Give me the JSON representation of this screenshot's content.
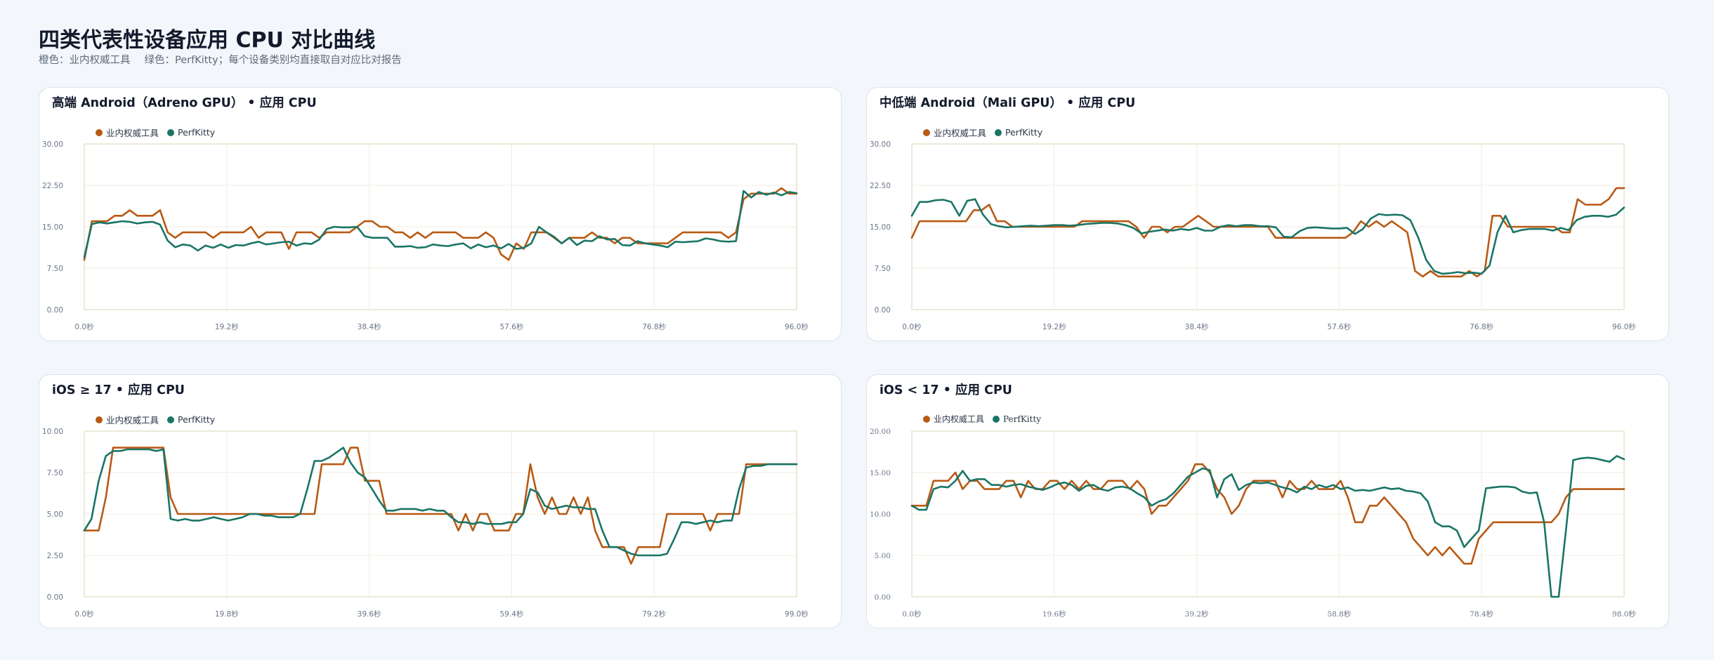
{
  "page": {
    "title": "四类代表性设备应用 CPU 对比曲线",
    "subtitle_parts": [
      "橙色：业内权威工具",
      "绿色：PerfKitty；每个设备类别均直接取自对应比对报告"
    ]
  },
  "colors": {
    "industry": "#b85a14",
    "perfkitty": "#1a7566",
    "grid": "#f0ece0",
    "frame": "#e3dcc0"
  },
  "legend": {
    "industry_label": "业内权威工具",
    "perfkitty_label": "PerfKitty"
  },
  "chart_data": [
    {
      "type": "line",
      "title": "高端 Android（Adreno GPU） • 应用 CPU",
      "ylim": [
        0,
        30
      ],
      "yticks": [
        "0.00",
        "7.50",
        "15.00",
        "22.50",
        "30.00"
      ],
      "xlim": [
        0,
        96
      ],
      "xticks": [
        "0.0秒",
        "19.2秒",
        "38.4秒",
        "57.6秒",
        "76.8秒",
        "96.0秒"
      ],
      "grid": true,
      "legend_position": "top-left",
      "series": [
        {
          "name": "业内权威工具",
          "values": [
            9,
            16,
            16,
            16,
            17,
            17,
            18,
            17,
            17,
            17,
            18,
            14,
            13,
            14,
            14,
            14,
            14,
            13,
            14,
            14,
            14,
            14,
            15,
            13,
            14,
            14,
            14,
            11,
            14,
            14,
            14,
            13,
            14,
            14,
            14,
            14,
            15,
            16,
            16,
            15,
            15,
            14,
            14,
            13,
            14,
            13,
            14,
            14,
            14,
            14,
            13,
            13,
            13,
            14,
            13,
            10,
            9,
            12,
            11,
            14,
            14,
            14,
            13,
            12,
            13,
            13,
            13,
            14,
            13,
            13,
            12,
            13,
            13,
            12,
            12,
            12,
            12,
            12,
            13,
            14,
            14,
            14,
            14,
            14,
            14,
            13,
            14,
            20,
            21,
            21,
            21,
            21,
            22,
            21,
            21
          ]
        },
        {
          "name": "PerfKitty",
          "values": [
            9.5,
            15.5,
            15.8,
            15.6,
            15.8,
            16,
            15.9,
            15.6,
            15.8,
            15.9,
            15.4,
            12.5,
            11.3,
            11.8,
            11.6,
            10.7,
            11.6,
            11.2,
            11.8,
            11.2,
            11.7,
            11.6,
            12,
            12.3,
            11.8,
            12,
            12.2,
            12.3,
            11.6,
            12,
            11.9,
            12.7,
            14.6,
            15,
            14.9,
            14.9,
            15,
            13.3,
            13,
            13,
            13,
            11.4,
            11.4,
            11.5,
            11.2,
            11.3,
            11.8,
            11.6,
            11.5,
            11.8,
            12,
            11.1,
            11.8,
            11.3,
            11.6,
            11.1,
            11.9,
            11,
            11.2,
            12,
            15,
            14,
            13.2,
            12,
            13,
            11.7,
            12.5,
            12.4,
            13.3,
            12.7,
            12.8,
            11.7,
            11.6,
            12.4,
            12,
            11.8,
            11.6,
            11.3,
            12.3,
            12.2,
            12.3,
            12.4,
            12.9,
            12.7,
            12.4,
            12.3,
            12.4,
            21.5,
            20.3,
            21.3,
            20.8,
            21.2,
            20.7,
            21.3,
            21.1
          ]
        }
      ]
    },
    {
      "type": "line",
      "title": "中低端 Android（Mali GPU） • 应用 CPU",
      "ylim": [
        0,
        30
      ],
      "yticks": [
        "0.00",
        "7.50",
        "15.00",
        "22.50",
        "30.00"
      ],
      "xlim": [
        0,
        96
      ],
      "xticks": [
        "0.0秒",
        "19.2秒",
        "38.4秒",
        "57.6秒",
        "76.8秒",
        "96.0秒"
      ],
      "grid": true,
      "legend_position": "top-left",
      "series": [
        {
          "name": "业内权威工具",
          "values": [
            13,
            16,
            16,
            16,
            16,
            16,
            16,
            16,
            18,
            18,
            19,
            16,
            16,
            15,
            15,
            15,
            15,
            15,
            15,
            15,
            15,
            15,
            16,
            16,
            16,
            16,
            16,
            16,
            16,
            15,
            13,
            15,
            15,
            14,
            15,
            15,
            16,
            17,
            16,
            15,
            15,
            15,
            15,
            15,
            15,
            15,
            15,
            13,
            13,
            13,
            13,
            13,
            13,
            13,
            13,
            13,
            13,
            14,
            16,
            15,
            16,
            15,
            16,
            15,
            14,
            7,
            6,
            7,
            6,
            6,
            6,
            6,
            7,
            6,
            7,
            17,
            17,
            15,
            15,
            15,
            15,
            15,
            15,
            15,
            14,
            14,
            20,
            19,
            19,
            19,
            20,
            22,
            22
          ]
        },
        {
          "name": "PerfKitty",
          "values": [
            17,
            19.5,
            19.5,
            19.8,
            19.9,
            19.5,
            17,
            19.7,
            20,
            17.2,
            15.5,
            15.1,
            14.9,
            15,
            15.1,
            15.2,
            15.1,
            15.2,
            15.3,
            15.3,
            15.2,
            15.3,
            15.5,
            15.6,
            15.7,
            15.7,
            15.6,
            15.3,
            14.8,
            13.8,
            14.1,
            14.3,
            14.5,
            14.3,
            14.6,
            14.4,
            14.8,
            14.3,
            14.3,
            15,
            15.3,
            15.1,
            15.3,
            15.3,
            15.1,
            15.1,
            14.9,
            13.2,
            13.1,
            14.2,
            14.8,
            14.9,
            14.8,
            14.7,
            14.7,
            14.8,
            13.7,
            14.6,
            16.5,
            17.3,
            17.1,
            17.2,
            17.1,
            16.2,
            13,
            9,
            7,
            6.5,
            6.6,
            6.8,
            6.6,
            6.7,
            6.5,
            8,
            14,
            17,
            14,
            14.4,
            14.6,
            14.6,
            14.6,
            14.3,
            14.8,
            14.4,
            16.2,
            16.8,
            17,
            17,
            16.8,
            17.2,
            18.5
          ]
        }
      ]
    },
    {
      "type": "line",
      "title": "iOS ≥ 17 • 应用 CPU",
      "ylim": [
        0,
        10
      ],
      "yticks": [
        "0.00",
        "2.50",
        "5.00",
        "7.50",
        "10.00"
      ],
      "xlim": [
        0,
        99
      ],
      "xticks": [
        "0.0秒",
        "19.8秒",
        "39.6秒",
        "59.4秒",
        "79.2秒",
        "99.0秒"
      ],
      "grid": true,
      "legend_position": "top-left",
      "series": [
        {
          "name": "业内权威工具",
          "values": [
            4,
            4,
            4,
            6,
            9,
            9,
            9,
            9,
            9,
            9,
            9,
            9,
            6,
            5,
            5,
            5,
            5,
            5,
            5,
            5,
            5,
            5,
            5,
            5,
            5,
            5,
            5,
            5,
            5,
            5,
            5,
            5,
            5,
            8,
            8,
            8,
            8,
            9,
            9,
            7,
            7,
            7,
            5,
            5,
            5,
            5,
            5,
            5,
            5,
            5,
            5,
            5,
            4,
            5,
            4,
            5,
            5,
            4,
            4,
            4,
            5,
            5,
            8,
            6,
            5,
            6,
            5,
            5,
            6,
            5,
            6,
            4,
            3,
            3,
            3,
            3,
            2,
            3,
            3,
            3,
            3,
            5,
            5,
            5,
            5,
            5,
            5,
            4,
            5,
            5,
            5,
            5,
            8,
            8,
            8,
            8,
            8,
            8,
            8,
            8
          ]
        },
        {
          "name": "PerfKitty",
          "values": [
            4,
            4.7,
            7,
            8.5,
            8.8,
            8.8,
            8.9,
            8.9,
            8.9,
            8.9,
            8.8,
            8.9,
            4.7,
            4.6,
            4.7,
            4.6,
            4.6,
            4.7,
            4.8,
            4.7,
            4.6,
            4.7,
            4.8,
            5,
            5,
            4.9,
            4.9,
            4.8,
            4.8,
            4.8,
            5,
            6.5,
            8.2,
            8.2,
            8.4,
            8.7,
            9,
            8.1,
            7.5,
            7.2,
            6.5,
            5.8,
            5.2,
            5.2,
            5.3,
            5.3,
            5.3,
            5.2,
            5.3,
            5.2,
            5.2,
            4.8,
            4.5,
            4.5,
            4.4,
            4.5,
            4.4,
            4.4,
            4.4,
            4.5,
            4.5,
            5,
            6.5,
            6.3,
            5.5,
            5.3,
            5.4,
            5.5,
            5.4,
            5.4,
            5.3,
            5.3,
            4,
            3,
            3,
            2.8,
            2.6,
            2.5,
            2.5,
            2.5,
            2.5,
            2.6,
            3.5,
            4.5,
            4.5,
            4.4,
            4.5,
            4.6,
            4.5,
            4.6,
            4.6,
            6.5,
            7.8,
            7.9,
            7.9,
            8,
            8,
            8,
            8,
            8
          ]
        }
      ]
    },
    {
      "type": "line",
      "title": "iOS < 17 • 应用 CPU",
      "ylim": [
        0,
        20
      ],
      "yticks": [
        "0.00",
        "5.00",
        "10.00",
        "15.00",
        "20.00"
      ],
      "xlim": [
        0,
        98
      ],
      "xticks": [
        "0.0秒",
        "19.6秒",
        "39.2秒",
        "58.8秒",
        "78.4秒",
        "98.0秒"
      ],
      "grid": true,
      "legend_position": "top-left",
      "series": [
        {
          "name": "业内权威工具",
          "values": [
            11,
            11,
            11,
            14,
            14,
            14,
            15,
            13,
            14,
            14,
            13,
            13,
            13,
            14,
            14,
            12,
            14,
            13,
            13,
            14,
            14,
            13,
            14,
            13,
            14,
            13,
            13,
            14,
            14,
            14,
            13,
            14,
            13,
            10,
            11,
            11,
            12,
            13,
            14,
            16,
            16,
            15,
            13,
            12,
            10,
            11,
            13,
            14,
            14,
            14,
            14,
            12,
            14,
            13,
            13,
            14,
            13,
            13,
            13,
            14,
            12,
            9,
            9,
            11,
            11,
            12,
            11,
            10,
            9,
            7,
            6,
            5,
            6,
            5,
            6,
            5,
            4,
            4,
            7,
            8,
            9,
            9,
            9,
            9,
            9,
            9,
            9,
            9,
            9,
            10,
            12,
            13,
            13,
            13,
            13,
            13,
            13,
            13,
            13
          ]
        },
        {
          "name": "PerfKitty",
          "values": [
            11,
            10.5,
            10.5,
            13,
            13.3,
            13.2,
            14,
            15.2,
            14,
            14.2,
            14.2,
            13.5,
            13.5,
            13.3,
            13.5,
            13.6,
            13.3,
            13.1,
            12.9,
            13.2,
            13.6,
            13.8,
            13.5,
            12.8,
            13.4,
            13.5,
            13,
            12.8,
            13.2,
            13.3,
            13.1,
            12.5,
            12,
            11,
            11.5,
            11.8,
            12.5,
            13.5,
            14.5,
            15,
            15.5,
            15.3,
            12,
            14.2,
            14.8,
            12.9,
            13.5,
            13.8,
            13.7,
            13.8,
            13.5,
            13.2,
            13,
            12.6,
            13.3,
            13,
            13.5,
            13.2,
            13.5,
            13,
            13.2,
            12.8,
            12.9,
            12.8,
            13,
            13.2,
            13,
            13.1,
            12.8,
            12.7,
            12.5,
            11.5,
            9,
            8.5,
            8.5,
            8,
            6,
            7,
            8,
            13.1,
            13.2,
            13.3,
            13.3,
            13.2,
            12.7,
            12.5,
            12.6,
            9,
            0,
            0,
            8,
            16.5,
            16.7,
            16.8,
            16.7,
            16.5,
            16.3,
            17,
            16.6
          ]
        }
      ]
    }
  ]
}
